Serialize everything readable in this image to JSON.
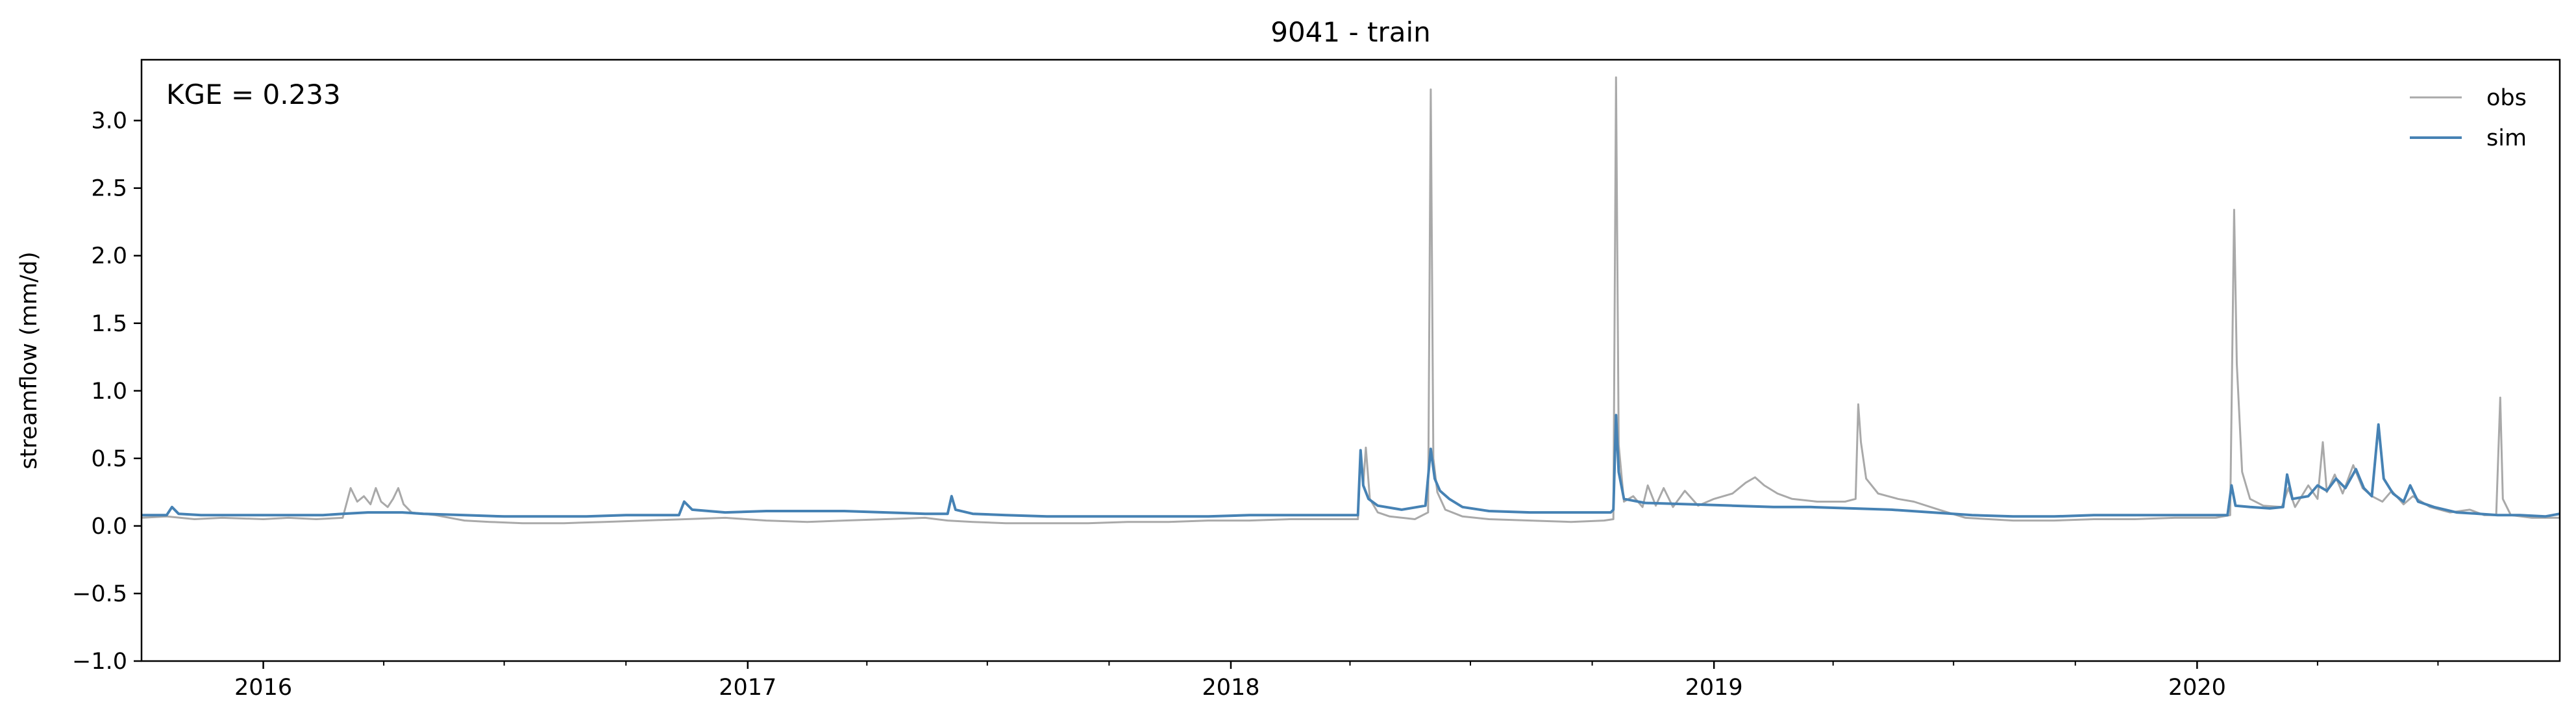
{
  "chart_data": {
    "type": "line",
    "title": "9041 - train",
    "xlabel": "",
    "ylabel": "streamflow (mm/d)",
    "xlim": [
      "2015-10-01",
      "2020-10-01"
    ],
    "ylim": [
      -1.0,
      3.45
    ],
    "yticks": [
      -1.0,
      -0.5,
      0.0,
      0.5,
      1.0,
      1.5,
      2.0,
      2.5,
      3.0
    ],
    "ytick_labels": [
      "−1.0",
      "−0.5",
      "0.0",
      "0.5",
      "1.0",
      "1.5",
      "2.0",
      "2.5",
      "3.0"
    ],
    "xticks": [
      "2016-01-01",
      "2017-01-01",
      "2018-01-01",
      "2019-01-01",
      "2020-01-01"
    ],
    "xtick_labels": [
      "2016",
      "2017",
      "2018",
      "2019",
      "2020"
    ],
    "grid": false,
    "legend_position": "top-right",
    "annotation": "KGE = 0.233",
    "series": [
      {
        "name": "obs",
        "color": "#a9a9a9",
        "points": [
          [
            "2015-10-01",
            0.06
          ],
          [
            "2015-10-20",
            0.07
          ],
          [
            "2015-11-10",
            0.05
          ],
          [
            "2015-12-01",
            0.06
          ],
          [
            "2016-01-01",
            0.05
          ],
          [
            "2016-01-20",
            0.06
          ],
          [
            "2016-02-10",
            0.05
          ],
          [
            "2016-03-01",
            0.06
          ],
          [
            "2016-03-07",
            0.28
          ],
          [
            "2016-03-12",
            0.18
          ],
          [
            "2016-03-17",
            0.22
          ],
          [
            "2016-03-22",
            0.16
          ],
          [
            "2016-03-26",
            0.28
          ],
          [
            "2016-03-30",
            0.18
          ],
          [
            "2016-04-04",
            0.14
          ],
          [
            "2016-04-08",
            0.2
          ],
          [
            "2016-04-12",
            0.28
          ],
          [
            "2016-04-16",
            0.16
          ],
          [
            "2016-04-22",
            0.1
          ],
          [
            "2016-05-10",
            0.08
          ],
          [
            "2016-06-01",
            0.04
          ],
          [
            "2016-06-20",
            0.03
          ],
          [
            "2016-07-15",
            0.02
          ],
          [
            "2016-08-15",
            0.02
          ],
          [
            "2016-09-15",
            0.03
          ],
          [
            "2016-10-15",
            0.04
          ],
          [
            "2016-11-15",
            0.05
          ],
          [
            "2016-12-15",
            0.06
          ],
          [
            "2017-01-15",
            0.04
          ],
          [
            "2017-02-15",
            0.03
          ],
          [
            "2017-03-15",
            0.04
          ],
          [
            "2017-04-15",
            0.05
          ],
          [
            "2017-05-15",
            0.06
          ],
          [
            "2017-06-01",
            0.04
          ],
          [
            "2017-06-20",
            0.03
          ],
          [
            "2017-07-15",
            0.02
          ],
          [
            "2017-08-15",
            0.02
          ],
          [
            "2017-09-15",
            0.02
          ],
          [
            "2017-10-15",
            0.03
          ],
          [
            "2017-11-15",
            0.03
          ],
          [
            "2017-12-15",
            0.04
          ],
          [
            "2018-01-15",
            0.04
          ],
          [
            "2018-02-15",
            0.05
          ],
          [
            "2018-03-15",
            0.05
          ],
          [
            "2018-04-07",
            0.05
          ],
          [
            "2018-04-09",
            0.55
          ],
          [
            "2018-04-11",
            0.3
          ],
          [
            "2018-04-13",
            0.58
          ],
          [
            "2018-04-16",
            0.2
          ],
          [
            "2018-04-22",
            0.1
          ],
          [
            "2018-05-01",
            0.07
          ],
          [
            "2018-05-20",
            0.05
          ],
          [
            "2018-05-30",
            0.1
          ],
          [
            "2018-06-01",
            3.23
          ],
          [
            "2018-06-03",
            0.5
          ],
          [
            "2018-06-06",
            0.25
          ],
          [
            "2018-06-12",
            0.12
          ],
          [
            "2018-06-25",
            0.07
          ],
          [
            "2018-07-15",
            0.05
          ],
          [
            "2018-08-15",
            0.04
          ],
          [
            "2018-09-15",
            0.03
          ],
          [
            "2018-10-10",
            0.04
          ],
          [
            "2018-10-17",
            0.05
          ],
          [
            "2018-10-19",
            3.32
          ],
          [
            "2018-10-21",
            0.6
          ],
          [
            "2018-10-25",
            0.18
          ],
          [
            "2018-11-01",
            0.22
          ],
          [
            "2018-11-08",
            0.14
          ],
          [
            "2018-11-12",
            0.3
          ],
          [
            "2018-11-18",
            0.15
          ],
          [
            "2018-11-24",
            0.28
          ],
          [
            "2018-12-01",
            0.14
          ],
          [
            "2018-12-10",
            0.26
          ],
          [
            "2018-12-20",
            0.15
          ],
          [
            "2019-01-01",
            0.2
          ],
          [
            "2019-01-15",
            0.24
          ],
          [
            "2019-01-25",
            0.32
          ],
          [
            "2019-02-01",
            0.36
          ],
          [
            "2019-02-08",
            0.3
          ],
          [
            "2019-02-18",
            0.24
          ],
          [
            "2019-03-01",
            0.2
          ],
          [
            "2019-03-20",
            0.18
          ],
          [
            "2019-04-10",
            0.18
          ],
          [
            "2019-04-18",
            0.2
          ],
          [
            "2019-04-20",
            0.9
          ],
          [
            "2019-04-22",
            0.62
          ],
          [
            "2019-04-26",
            0.35
          ],
          [
            "2019-05-05",
            0.24
          ],
          [
            "2019-05-20",
            0.2
          ],
          [
            "2019-06-01",
            0.18
          ],
          [
            "2019-06-20",
            0.12
          ],
          [
            "2019-07-10",
            0.06
          ],
          [
            "2019-08-15",
            0.04
          ],
          [
            "2019-09-15",
            0.04
          ],
          [
            "2019-10-15",
            0.05
          ],
          [
            "2019-11-15",
            0.05
          ],
          [
            "2019-12-15",
            0.06
          ],
          [
            "2020-01-15",
            0.06
          ],
          [
            "2020-01-26",
            0.08
          ],
          [
            "2020-01-29",
            2.34
          ],
          [
            "2020-01-31",
            1.2
          ],
          [
            "2020-02-04",
            0.4
          ],
          [
            "2020-02-10",
            0.2
          ],
          [
            "2020-02-20",
            0.15
          ],
          [
            "2020-03-05",
            0.14
          ],
          [
            "2020-03-10",
            0.28
          ],
          [
            "2020-03-15",
            0.14
          ],
          [
            "2020-03-25",
            0.3
          ],
          [
            "2020-04-01",
            0.2
          ],
          [
            "2020-04-05",
            0.62
          ],
          [
            "2020-04-08",
            0.25
          ],
          [
            "2020-04-14",
            0.38
          ],
          [
            "2020-04-20",
            0.24
          ],
          [
            "2020-04-28",
            0.45
          ],
          [
            "2020-05-05",
            0.28
          ],
          [
            "2020-05-12",
            0.22
          ],
          [
            "2020-05-20",
            0.18
          ],
          [
            "2020-05-27",
            0.26
          ],
          [
            "2020-06-05",
            0.16
          ],
          [
            "2020-06-12",
            0.22
          ],
          [
            "2020-06-25",
            0.14
          ],
          [
            "2020-07-10",
            0.1
          ],
          [
            "2020-07-25",
            0.12
          ],
          [
            "2020-08-05",
            0.08
          ],
          [
            "2020-08-14",
            0.08
          ],
          [
            "2020-08-17",
            0.95
          ],
          [
            "2020-08-19",
            0.2
          ],
          [
            "2020-08-25",
            0.08
          ],
          [
            "2020-09-10",
            0.06
          ],
          [
            "2020-10-01",
            0.06
          ]
        ]
      },
      {
        "name": "sim",
        "color": "#4682b4",
        "points": [
          [
            "2015-10-01",
            0.08
          ],
          [
            "2015-10-20",
            0.08
          ],
          [
            "2015-10-24",
            0.14
          ],
          [
            "2015-10-29",
            0.09
          ],
          [
            "2015-11-15",
            0.08
          ],
          [
            "2015-12-15",
            0.08
          ],
          [
            "2016-01-15",
            0.08
          ],
          [
            "2016-02-15",
            0.08
          ],
          [
            "2016-03-01",
            0.09
          ],
          [
            "2016-03-20",
            0.1
          ],
          [
            "2016-04-15",
            0.1
          ],
          [
            "2016-05-01",
            0.09
          ],
          [
            "2016-06-01",
            0.08
          ],
          [
            "2016-07-01",
            0.07
          ],
          [
            "2016-08-01",
            0.07
          ],
          [
            "2016-09-01",
            0.07
          ],
          [
            "2016-10-01",
            0.08
          ],
          [
            "2016-11-10",
            0.08
          ],
          [
            "2016-11-14",
            0.18
          ],
          [
            "2016-11-20",
            0.12
          ],
          [
            "2016-12-15",
            0.1
          ],
          [
            "2017-01-15",
            0.11
          ],
          [
            "2017-02-15",
            0.11
          ],
          [
            "2017-03-15",
            0.11
          ],
          [
            "2017-04-15",
            0.1
          ],
          [
            "2017-05-15",
            0.09
          ],
          [
            "2017-06-01",
            0.09
          ],
          [
            "2017-06-04",
            0.22
          ],
          [
            "2017-06-07",
            0.12
          ],
          [
            "2017-06-20",
            0.09
          ],
          [
            "2017-07-15",
            0.08
          ],
          [
            "2017-08-15",
            0.07
          ],
          [
            "2017-09-15",
            0.07
          ],
          [
            "2017-10-15",
            0.07
          ],
          [
            "2017-11-15",
            0.07
          ],
          [
            "2017-12-15",
            0.07
          ],
          [
            "2018-01-15",
            0.08
          ],
          [
            "2018-02-15",
            0.08
          ],
          [
            "2018-03-15",
            0.08
          ],
          [
            "2018-04-07",
            0.08
          ],
          [
            "2018-04-09",
            0.56
          ],
          [
            "2018-04-11",
            0.3
          ],
          [
            "2018-04-15",
            0.2
          ],
          [
            "2018-04-22",
            0.15
          ],
          [
            "2018-05-10",
            0.12
          ],
          [
            "2018-05-28",
            0.15
          ],
          [
            "2018-06-01",
            0.57
          ],
          [
            "2018-06-04",
            0.35
          ],
          [
            "2018-06-08",
            0.26
          ],
          [
            "2018-06-15",
            0.2
          ],
          [
            "2018-06-25",
            0.14
          ],
          [
            "2018-07-15",
            0.11
          ],
          [
            "2018-08-15",
            0.1
          ],
          [
            "2018-09-15",
            0.1
          ],
          [
            "2018-10-15",
            0.1
          ],
          [
            "2018-10-17",
            0.12
          ],
          [
            "2018-10-19",
            0.82
          ],
          [
            "2018-10-21",
            0.4
          ],
          [
            "2018-10-25",
            0.2
          ],
          [
            "2018-11-10",
            0.17
          ],
          [
            "2018-12-15",
            0.16
          ],
          [
            "2019-01-15",
            0.15
          ],
          [
            "2019-02-15",
            0.14
          ],
          [
            "2019-03-15",
            0.14
          ],
          [
            "2019-04-15",
            0.13
          ],
          [
            "2019-05-15",
            0.12
          ],
          [
            "2019-06-15",
            0.1
          ],
          [
            "2019-07-15",
            0.08
          ],
          [
            "2019-08-15",
            0.07
          ],
          [
            "2019-09-15",
            0.07
          ],
          [
            "2019-10-15",
            0.08
          ],
          [
            "2019-11-15",
            0.08
          ],
          [
            "2019-12-15",
            0.08
          ],
          [
            "2020-01-15",
            0.08
          ],
          [
            "2020-01-24",
            0.08
          ],
          [
            "2020-01-27",
            0.3
          ],
          [
            "2020-01-30",
            0.15
          ],
          [
            "2020-02-10",
            0.14
          ],
          [
            "2020-02-25",
            0.13
          ],
          [
            "2020-03-06",
            0.14
          ],
          [
            "2020-03-09",
            0.38
          ],
          [
            "2020-03-13",
            0.2
          ],
          [
            "2020-03-25",
            0.22
          ],
          [
            "2020-04-01",
            0.3
          ],
          [
            "2020-04-08",
            0.26
          ],
          [
            "2020-04-15",
            0.35
          ],
          [
            "2020-04-22",
            0.28
          ],
          [
            "2020-04-30",
            0.42
          ],
          [
            "2020-05-06",
            0.28
          ],
          [
            "2020-05-12",
            0.22
          ],
          [
            "2020-05-17",
            0.75
          ],
          [
            "2020-05-21",
            0.35
          ],
          [
            "2020-05-28",
            0.24
          ],
          [
            "2020-06-05",
            0.18
          ],
          [
            "2020-06-10",
            0.3
          ],
          [
            "2020-06-16",
            0.18
          ],
          [
            "2020-06-28",
            0.14
          ],
          [
            "2020-07-15",
            0.1
          ],
          [
            "2020-08-01",
            0.09
          ],
          [
            "2020-08-15",
            0.08
          ],
          [
            "2020-09-01",
            0.08
          ],
          [
            "2020-09-20",
            0.07
          ],
          [
            "2020-10-01",
            0.09
          ]
        ]
      }
    ]
  }
}
